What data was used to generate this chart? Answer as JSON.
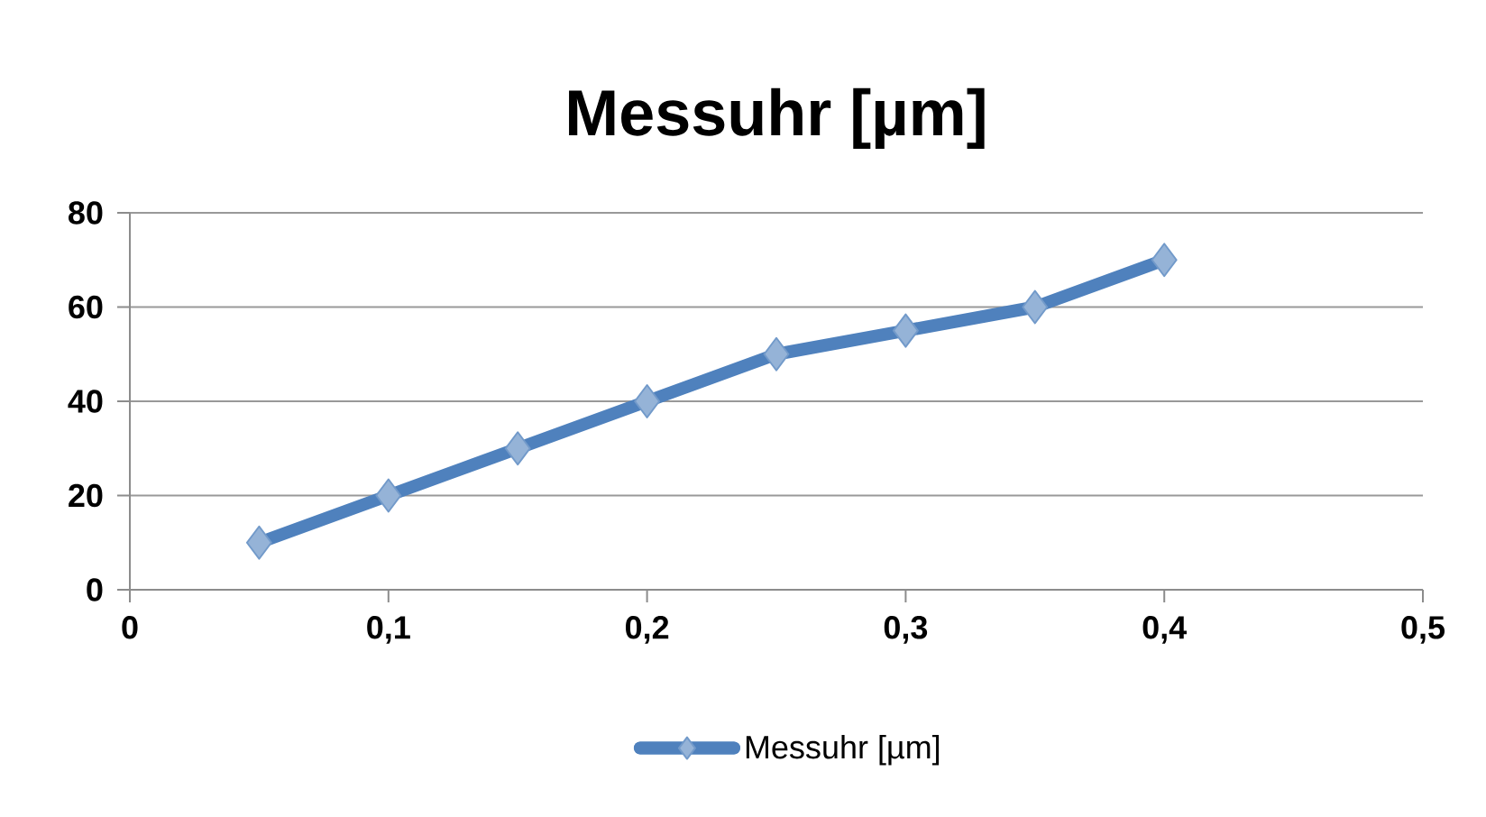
{
  "chart_data": {
    "type": "line",
    "title": "Messuhr [µm]",
    "x": [
      0.05,
      0.1,
      0.15,
      0.2,
      0.25,
      0.3,
      0.35,
      0.4
    ],
    "series": [
      {
        "name": "Messuhr [µm]",
        "color": "#4f81bd",
        "values": [
          10,
          20,
          30,
          40,
          50,
          55,
          60,
          70
        ]
      }
    ],
    "xlim": [
      0,
      0.5
    ],
    "xticks": [
      0,
      {
        "value": 0.1,
        "label": "0,1"
      },
      {
        "value": 0.2,
        "label": "0,2"
      },
      {
        "value": 0.3,
        "label": "0,3"
      },
      {
        "value": 0.4,
        "label": "0,4"
      },
      {
        "value": 0.5,
        "label": "0,5"
      }
    ],
    "ylim": [
      0,
      80
    ],
    "yticks": [
      0,
      20,
      40,
      60,
      80
    ],
    "grid": "y",
    "legend": "bottom",
    "marker": "diamond",
    "line_style": "solid"
  }
}
